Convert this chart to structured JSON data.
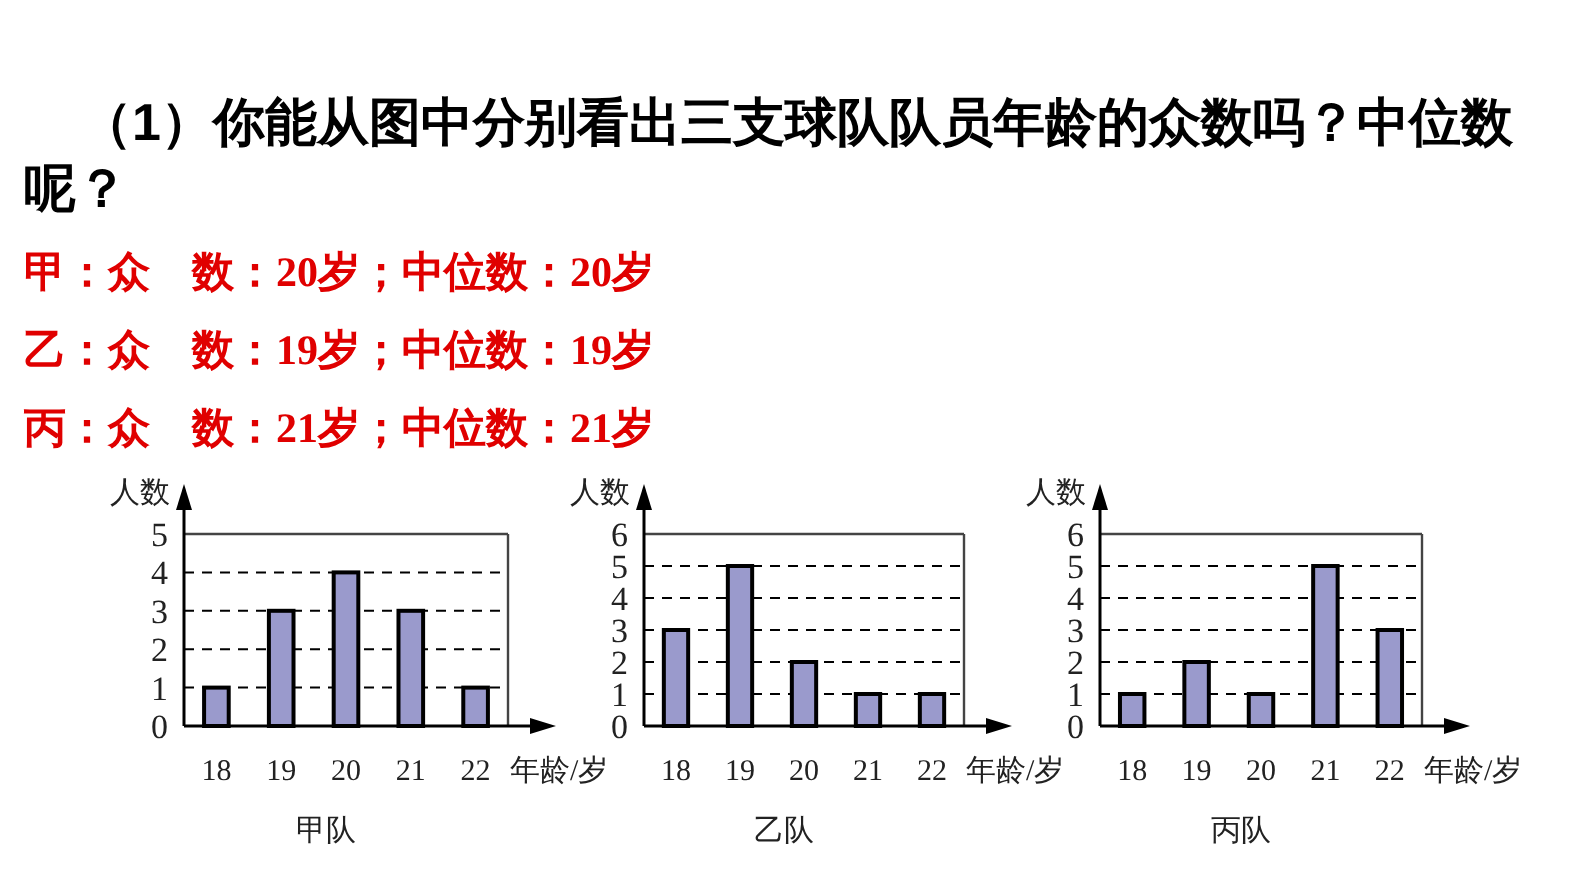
{
  "chart_data": [
    {
      "type": "bar",
      "title": "甲队",
      "xlabel": "年龄/岁",
      "ylabel": "人数",
      "categories": [
        "18",
        "19",
        "20",
        "21",
        "22"
      ],
      "values": [
        1,
        3,
        4,
        3,
        1
      ],
      "color": "#9a9acc",
      "ylim": [
        0,
        5
      ],
      "yticks": [
        0,
        1,
        2,
        3,
        4,
        5
      ],
      "grid": "y",
      "annotations": [
        "（1）你能从图中分别看出三支球队队员年龄的众数吗？中位数呢？",
        "甲：众　数：20岁；中位数：20岁",
        "乙：众　数：19岁；中位数：19岁",
        "丙：众　数：21岁；中位数：21岁"
      ]
    },
    {
      "type": "bar",
      "title": "乙队",
      "xlabel": "年龄/岁",
      "ylabel": "人数",
      "categories": [
        "18",
        "19",
        "20",
        "21",
        "22"
      ],
      "values": [
        3,
        5,
        2,
        1,
        1
      ],
      "color": "#9a9acc",
      "ylim": [
        0,
        6
      ],
      "yticks": [
        0,
        1,
        2,
        3,
        4,
        5,
        6
      ],
      "grid": "y"
    },
    {
      "type": "bar",
      "title": "丙队",
      "xlabel": "年龄/岁",
      "ylabel": "人数",
      "categories": [
        "18",
        "19",
        "20",
        "21",
        "22"
      ],
      "values": [
        1,
        2,
        1,
        5,
        3
      ],
      "color": "#9a9acc",
      "ylim": [
        0,
        6
      ],
      "yticks": [
        0,
        1,
        2,
        3,
        4,
        5,
        6
      ],
      "grid": "y"
    }
  ]
}
